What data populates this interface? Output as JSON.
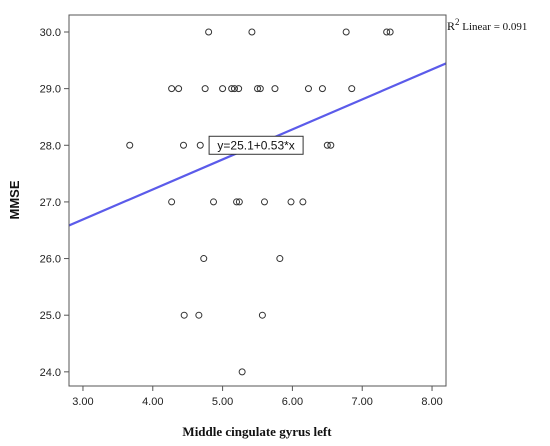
{
  "chart_data": {
    "type": "scatter",
    "xlabel": "Middle cingulate gyrus left",
    "ylabel": "MMSE",
    "xlim": [
      2.8,
      8.2
    ],
    "ylim": [
      23.75,
      30.3
    ],
    "x_ticks": [
      3.0,
      4.0,
      5.0,
      6.0,
      7.0,
      8.0
    ],
    "x_tick_labels": [
      "3.00",
      "4.00",
      "5.00",
      "6.00",
      "7.00",
      "8.00"
    ],
    "y_ticks": [
      24.0,
      25.0,
      26.0,
      27.0,
      28.0,
      29.0,
      30.0
    ],
    "y_tick_labels": [
      "24.0",
      "25.0",
      "26.0",
      "27.0",
      "28.0",
      "29.0",
      "30.0"
    ],
    "grid": false,
    "points": [
      {
        "x": 4.8,
        "y": 30
      },
      {
        "x": 5.42,
        "y": 30
      },
      {
        "x": 6.77,
        "y": 30
      },
      {
        "x": 7.35,
        "y": 30
      },
      {
        "x": 7.4,
        "y": 30
      },
      {
        "x": 4.27,
        "y": 29
      },
      {
        "x": 4.37,
        "y": 29
      },
      {
        "x": 4.75,
        "y": 29
      },
      {
        "x": 5.0,
        "y": 29
      },
      {
        "x": 5.13,
        "y": 29
      },
      {
        "x": 5.17,
        "y": 29
      },
      {
        "x": 5.23,
        "y": 29
      },
      {
        "x": 5.5,
        "y": 29
      },
      {
        "x": 5.54,
        "y": 29
      },
      {
        "x": 5.75,
        "y": 29
      },
      {
        "x": 6.23,
        "y": 29
      },
      {
        "x": 6.43,
        "y": 29
      },
      {
        "x": 6.85,
        "y": 29
      },
      {
        "x": 3.67,
        "y": 28
      },
      {
        "x": 4.44,
        "y": 28
      },
      {
        "x": 4.68,
        "y": 28
      },
      {
        "x": 6.5,
        "y": 28
      },
      {
        "x": 6.55,
        "y": 28
      },
      {
        "x": 4.27,
        "y": 27
      },
      {
        "x": 4.87,
        "y": 27
      },
      {
        "x": 5.2,
        "y": 27
      },
      {
        "x": 5.24,
        "y": 27
      },
      {
        "x": 5.6,
        "y": 27
      },
      {
        "x": 5.98,
        "y": 27
      },
      {
        "x": 6.15,
        "y": 27
      },
      {
        "x": 4.73,
        "y": 26
      },
      {
        "x": 5.82,
        "y": 26
      },
      {
        "x": 4.45,
        "y": 25
      },
      {
        "x": 4.66,
        "y": 25
      },
      {
        "x": 5.57,
        "y": 25
      },
      {
        "x": 5.28,
        "y": 24
      }
    ],
    "fit_line": {
      "intercept": 25.1,
      "slope": 0.53,
      "color": "#5b5bea",
      "equation_label": "y=25.1+0.53*x",
      "equation_at": {
        "x": 5.48,
        "y": 28.0
      }
    },
    "annotation": {
      "r2_symbol": "R",
      "r2_superscript": "2",
      "r2_text": " Linear = 0.091"
    },
    "marker_color": "#333333",
    "frame_color": "#555555"
  }
}
